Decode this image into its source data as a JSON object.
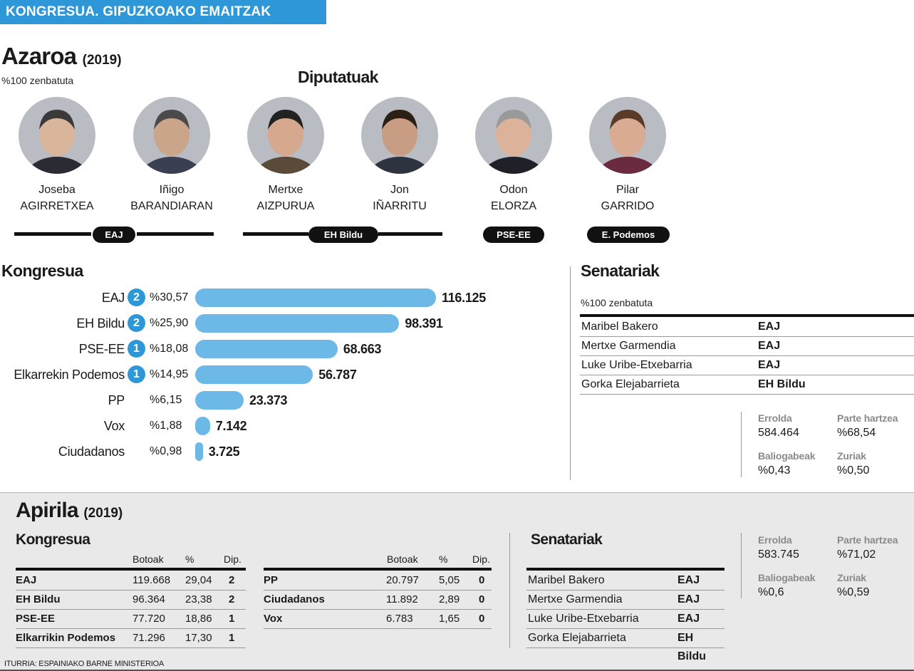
{
  "header": {
    "title": "KONGRESUA. GIPUZKOAKO EMAITZAK"
  },
  "november": {
    "title": "Azaroa",
    "year": "(2019)",
    "subtitle": "%100 zenbatuta",
    "deputies_title": "Diputatuak",
    "deputies": [
      {
        "first": "Joseba",
        "last": "AGIRRETXEA"
      },
      {
        "first": "Iñigo",
        "last": "BARANDIARAN"
      },
      {
        "first": "Mertxe",
        "last": "AIZPURUA"
      },
      {
        "first": "Jon",
        "last": "IÑARRITU"
      },
      {
        "first": "Odon",
        "last": "ELORZA"
      },
      {
        "first": "Pilar",
        "last": "GARRIDO"
      }
    ],
    "party_pills": [
      "EAJ",
      "EH Bildu",
      "PSE-EE",
      "E. Podemos"
    ],
    "kongresua_title": "Kongresua",
    "senate_title": "Senatariak",
    "senate_subtitle": "%100 zenbatuta",
    "senators": [
      {
        "name": "Maribel Bakero",
        "party": "EAJ"
      },
      {
        "name": "Mertxe Garmendia",
        "party": "EAJ"
      },
      {
        "name": "Luke Uribe-Etxebarria",
        "party": "EAJ"
      },
      {
        "name": "Gorka Elejabarrieta",
        "party": "EH Bildu"
      }
    ],
    "stats": {
      "errolda_label": "Errolda",
      "errolda": "584.464",
      "parte_label": "Parte hartzea",
      "parte": "%68,54",
      "baliogabeak_label": "Baliogabeak",
      "baliogabeak": "%0,43",
      "zuriak_label": "Zuriak",
      "zuriak": "%0,50"
    }
  },
  "april": {
    "title": "Apirila",
    "year": "(2019)",
    "kongresua_title": "Kongresua",
    "senate_title": "Senatariak",
    "col_votes": "Botoak",
    "col_pct": "%",
    "col_seats": "Dip.",
    "table_left": [
      {
        "party": "EAJ",
        "votes": "119.668",
        "pct": "29,04",
        "seats": "2"
      },
      {
        "party": "EH Bildu",
        "votes": "96.364",
        "pct": "23,38",
        "seats": "2"
      },
      {
        "party": "PSE-EE",
        "votes": "77.720",
        "pct": "18,86",
        "seats": "1"
      },
      {
        "party": "Elkarrikin Podemos",
        "votes": "71.296",
        "pct": "17,30",
        "seats": "1"
      }
    ],
    "table_right": [
      {
        "party": "PP",
        "votes": "20.797",
        "pct": "5,05",
        "seats": "0"
      },
      {
        "party": "Ciudadanos",
        "votes": "11.892",
        "pct": "2,89",
        "seats": "0"
      },
      {
        "party": "Vox",
        "votes": "6.783",
        "pct": "1,65",
        "seats": "0"
      }
    ],
    "senators": [
      {
        "name": "Maribel Bakero",
        "party": "EAJ"
      },
      {
        "name": "Mertxe Garmendia",
        "party": "EAJ"
      },
      {
        "name": "Luke Uribe-Etxebarria",
        "party": "EAJ"
      },
      {
        "name": "Gorka Elejabarrieta",
        "party": "EH Bildu"
      }
    ],
    "stats": {
      "errolda_label": "Errolda",
      "errolda": "583.745",
      "parte_label": "Parte hartzea",
      "parte": "%71,02",
      "baliogabeak_label": "Baliogabeak",
      "baliogabeak": "%0,6",
      "zuriak_label": "Zuriak",
      "zuriak": "%0,59"
    }
  },
  "source": "ITURRIA: ESPAINIAKO BARNE MINISTERIOA",
  "colors": {
    "accent": "#2e97d8",
    "bar": "#6cb8e6"
  },
  "chart_data": {
    "type": "bar",
    "orientation": "horizontal",
    "title": "Kongresua",
    "categories": [
      "EAJ",
      "EH Bildu",
      "PSE-EE",
      "Elkarrekin Podemos",
      "PP",
      "Vox",
      "Ciudadanos"
    ],
    "values": [
      116125,
      98391,
      68663,
      56787,
      23373,
      7142,
      3725
    ],
    "value_labels": [
      "116.125",
      "98.391",
      "68.663",
      "56.787",
      "23.373",
      "7.142",
      "3.725"
    ],
    "percent_labels": [
      "%30,57",
      "%25,90",
      "%18,08",
      "%14,95",
      "%6,15",
      "%1,88",
      "%0,98"
    ],
    "seats": [
      "2",
      "2",
      "1",
      "1",
      "",
      "",
      ""
    ],
    "xlim": [
      0,
      116125
    ]
  }
}
